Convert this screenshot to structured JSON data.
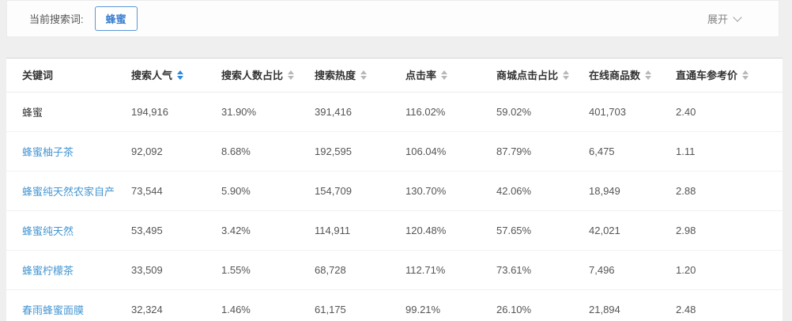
{
  "filter_bar": {
    "label": "当前搜索词:",
    "tag": "蜂蜜",
    "expand_label": "展开"
  },
  "table": {
    "columns": [
      {
        "id": "keyword",
        "label": "关键词",
        "sortable": false,
        "sort_active": false
      },
      {
        "id": "search-popularity",
        "label": "搜索人气",
        "sortable": true,
        "sort_active": true
      },
      {
        "id": "search-user-share",
        "label": "搜索人数占比",
        "sortable": true,
        "sort_active": false
      },
      {
        "id": "search-heat",
        "label": "搜索热度",
        "sortable": true,
        "sort_active": false
      },
      {
        "id": "click-rate",
        "label": "点击率",
        "sortable": true,
        "sort_active": false
      },
      {
        "id": "mall-click-share",
        "label": "商城点击占比",
        "sortable": true,
        "sort_active": false
      },
      {
        "id": "online-products",
        "label": "在线商品数",
        "sortable": true,
        "sort_active": false
      },
      {
        "id": "ztc-reference-price",
        "label": "直通车参考价",
        "sortable": true,
        "sort_active": false
      }
    ],
    "rows": [
      {
        "keyword": "蜂蜜",
        "is_link": false,
        "values": [
          "194,916",
          "31.90%",
          "391,416",
          "116.02%",
          "59.02%",
          "401,703",
          "2.40"
        ]
      },
      {
        "keyword": "蜂蜜柚子茶",
        "is_link": true,
        "values": [
          "92,092",
          "8.68%",
          "192,595",
          "106.04%",
          "87.79%",
          "6,475",
          "1.11"
        ]
      },
      {
        "keyword": "蜂蜜纯天然农家自产",
        "is_link": true,
        "values": [
          "73,544",
          "5.90%",
          "154,709",
          "130.70%",
          "42.06%",
          "18,949",
          "2.88"
        ]
      },
      {
        "keyword": "蜂蜜纯天然",
        "is_link": true,
        "values": [
          "53,495",
          "3.42%",
          "114,911",
          "120.48%",
          "57.65%",
          "42,021",
          "2.98"
        ]
      },
      {
        "keyword": "蜂蜜柠檬茶",
        "is_link": true,
        "values": [
          "33,509",
          "1.55%",
          "68,728",
          "112.71%",
          "73.61%",
          "7,496",
          "1.20"
        ]
      },
      {
        "keyword": "春雨蜂蜜面膜",
        "is_link": true,
        "values": [
          "32,324",
          "1.46%",
          "61,175",
          "99.21%",
          "26.10%",
          "21,894",
          "2.48"
        ]
      }
    ]
  },
  "icons": {
    "expand_chevron": "chevron-down-icon",
    "sort": "sort-carets-icon"
  },
  "colors": {
    "accent_blue": "#2f86dd",
    "link_blue": "#4596d2",
    "tag_border_blue": "#5a96d8",
    "sort_inactive_gray": "#b8b8b8",
    "page_background": "#efefef"
  }
}
